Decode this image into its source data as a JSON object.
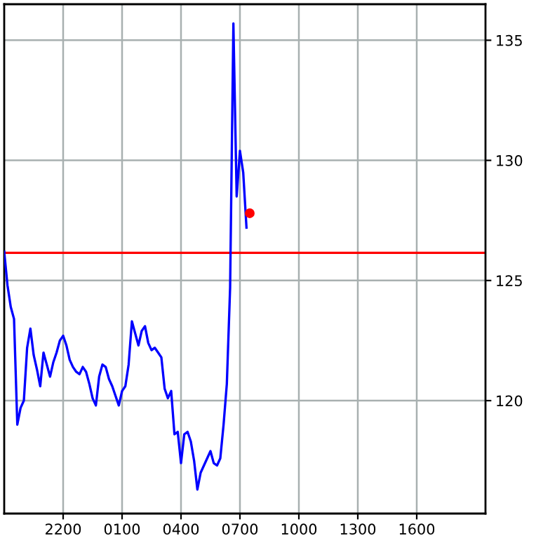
{
  "chart_data": {
    "type": "line",
    "ylim": [
      115.3,
      136.5
    ],
    "yticks": [
      120,
      125,
      130,
      135
    ],
    "grid": true,
    "marker": "none",
    "line_style": "solid",
    "categories": [
      null,
      null,
      null,
      null,
      null,
      null,
      null,
      null,
      null,
      null,
      null,
      null,
      null,
      null,
      null,
      null,
      null,
      null,
      "2200",
      null,
      null,
      null,
      null,
      null,
      null,
      null,
      null,
      null,
      null,
      null,
      null,
      null,
      null,
      null,
      null,
      null,
      "0100",
      null,
      null,
      null,
      null,
      null,
      null,
      null,
      null,
      null,
      null,
      null,
      null,
      null,
      null,
      null,
      null,
      null,
      "0400",
      null,
      null,
      null,
      null,
      null,
      null,
      null,
      null,
      null,
      null,
      null,
      null,
      null,
      null,
      null,
      null,
      null,
      "0700",
      null,
      null,
      null,
      null,
      null,
      null,
      null,
      null,
      null,
      null,
      null,
      null,
      null,
      null,
      null,
      null,
      null,
      "1000",
      null,
      null,
      null,
      null,
      null,
      null,
      null,
      null,
      null,
      null,
      null,
      null,
      null,
      null,
      null,
      null,
      null,
      "1300",
      null,
      null,
      null,
      null,
      null,
      null,
      null,
      null,
      null,
      null,
      null,
      null,
      null,
      null,
      null,
      null,
      null,
      "1600",
      null,
      null,
      null,
      null,
      null,
      null,
      null,
      null,
      null,
      null,
      null,
      null,
      null,
      null,
      null,
      null,
      null,
      null,
      null,
      null
    ],
    "series": [
      {
        "color": "#0000ff",
        "values": [
          126.2,
          124.8,
          123.9,
          123.4,
          119.0,
          119.7,
          120.0,
          122.2,
          123.0,
          121.9,
          121.3,
          120.6,
          122.0,
          121.5,
          121.0,
          121.6,
          122.0,
          122.5,
          122.7,
          122.3,
          121.7,
          121.4,
          121.2,
          121.1,
          121.4,
          121.2,
          120.7,
          120.1,
          119.8,
          121.0,
          121.5,
          121.4,
          120.9,
          120.6,
          120.2,
          119.8,
          120.4,
          120.6,
          121.5,
          123.3,
          122.8,
          122.3,
          122.9,
          123.1,
          122.4,
          122.1,
          122.2,
          122.0,
          121.8,
          120.5,
          120.1,
          120.4,
          118.6,
          118.7,
          117.4,
          118.6,
          118.7,
          118.3,
          117.5,
          116.3,
          117.0,
          117.3,
          117.6,
          117.9,
          117.4,
          117.3,
          117.6,
          119.0,
          120.7,
          124.7,
          135.7,
          128.5,
          130.4,
          129.5,
          127.2,
          null,
          null,
          null,
          null,
          null,
          null,
          null,
          null,
          null,
          null,
          null,
          null,
          null,
          null,
          null,
          null,
          null,
          null,
          null,
          null,
          null,
          null,
          null,
          null,
          null,
          null,
          null,
          null,
          null,
          null,
          null,
          null,
          null,
          null,
          null,
          null,
          null,
          null,
          null,
          null,
          null,
          null,
          null,
          null,
          null,
          null,
          null,
          null,
          null,
          null,
          null,
          null,
          null,
          null,
          null,
          null,
          null,
          null,
          null,
          null,
          null,
          null,
          null,
          null,
          null,
          null,
          null,
          null,
          null,
          null,
          null,
          null
        ]
      },
      {
        "type": "scatter",
        "color": "#ff0000",
        "marker": "circle",
        "values": [
          null,
          null,
          null,
          null,
          null,
          null,
          null,
          null,
          null,
          null,
          null,
          null,
          null,
          null,
          null,
          null,
          null,
          null,
          null,
          null,
          null,
          null,
          null,
          null,
          null,
          null,
          null,
          null,
          null,
          null,
          null,
          null,
          null,
          null,
          null,
          null,
          null,
          null,
          null,
          null,
          null,
          null,
          null,
          null,
          null,
          null,
          null,
          null,
          null,
          null,
          null,
          null,
          null,
          null,
          null,
          null,
          null,
          null,
          null,
          null,
          null,
          null,
          null,
          null,
          null,
          null,
          null,
          null,
          null,
          null,
          null,
          null,
          null,
          null,
          null,
          127.8,
          null,
          null,
          null,
          null,
          null,
          null,
          null,
          null,
          null,
          null,
          null,
          null,
          null,
          null,
          null,
          null,
          null,
          null,
          null,
          null,
          null,
          null,
          null,
          null,
          null,
          null,
          null,
          null,
          null,
          null,
          null,
          null,
          null,
          null,
          null,
          null,
          null,
          null,
          null,
          null,
          null,
          null,
          null,
          null,
          null,
          null,
          null,
          null,
          null,
          null,
          null,
          null,
          null,
          null,
          null,
          null,
          null,
          null,
          null,
          null,
          null,
          null,
          null,
          null,
          null,
          null,
          null,
          null,
          null,
          null,
          null
        ]
      }
    ],
    "ref_lines": [
      {
        "axis": "y",
        "value": 126.15,
        "color": "#ff0000",
        "line_style": "solid"
      }
    ]
  }
}
